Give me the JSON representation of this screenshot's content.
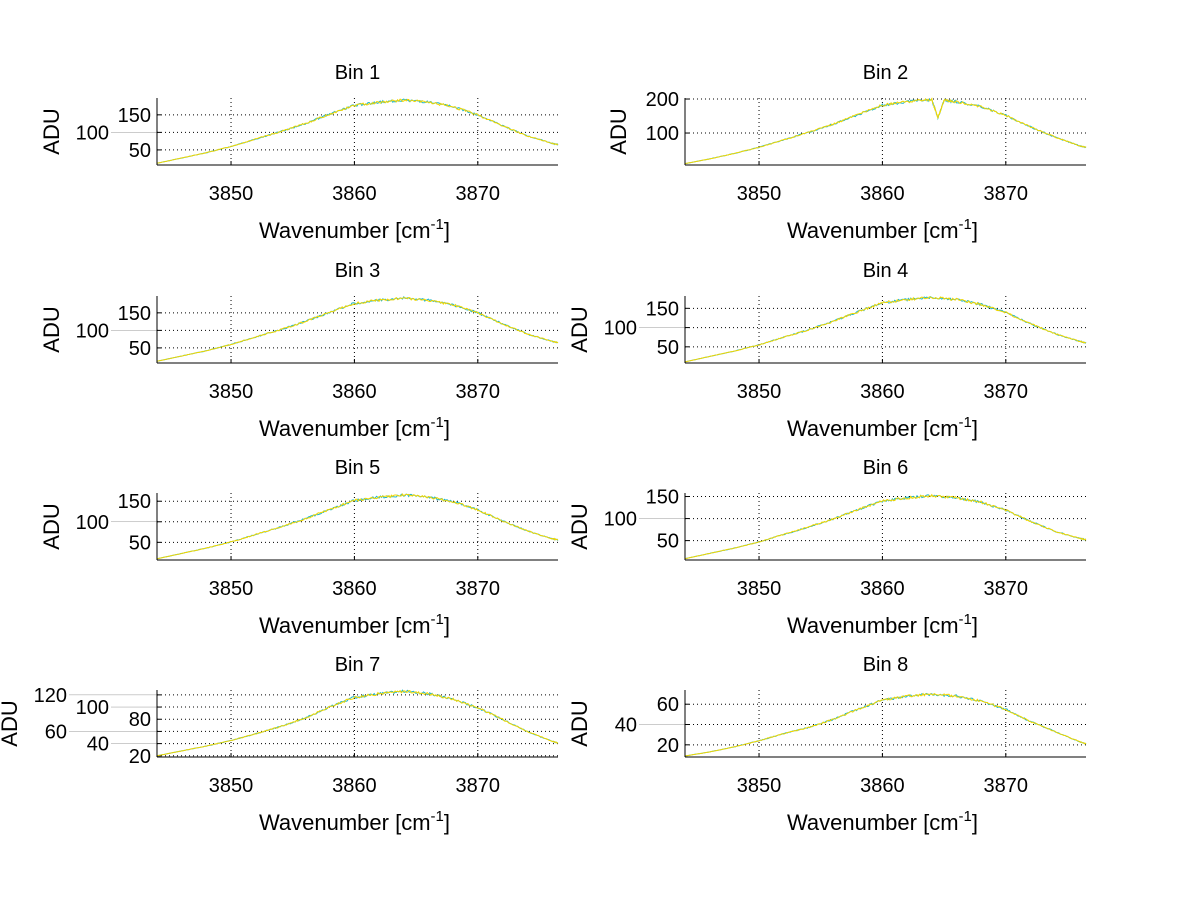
{
  "chart_data": [
    {
      "type": "line",
      "title": "Bin 1",
      "xlabel": "Wavenumber [cm",
      "xlabel_sup": "-1",
      "xlabel_end": "]",
      "ylabel": "ADU",
      "xlim": [
        3844,
        3876.5
      ],
      "ylim": [
        7,
        198
      ],
      "xticks": [
        3850,
        3860,
        3870
      ],
      "yticks": [
        50,
        100,
        150
      ],
      "grid": true,
      "x": [
        3844,
        3846,
        3848,
        3850,
        3852,
        3854,
        3856,
        3858,
        3860,
        3862,
        3864,
        3866,
        3868,
        3870,
        3872,
        3874,
        3876,
        3876.5
      ],
      "y": [
        12,
        27,
        42,
        60,
        81,
        102,
        125,
        152,
        177,
        186,
        192,
        186,
        173,
        150,
        119,
        90,
        69,
        65
      ]
    },
    {
      "type": "line",
      "title": "Bin 2",
      "xlabel": "Wavenumber [cm",
      "xlabel_sup": "-1",
      "xlabel_end": "]",
      "ylabel": "ADU",
      "xlim": [
        3844,
        3876.5
      ],
      "ylim": [
        6,
        203
      ],
      "xticks": [
        3850,
        3860,
        3870
      ],
      "yticks": [
        100,
        200
      ],
      "grid": true,
      "x": [
        3844,
        3846,
        3848,
        3850,
        3852,
        3854,
        3856,
        3858,
        3860,
        3862,
        3864,
        3864.5,
        3865,
        3866,
        3868,
        3870,
        3872,
        3874,
        3876,
        3876.5
      ],
      "y": [
        10,
        24,
        40,
        58,
        80,
        102,
        126,
        154,
        182,
        192,
        198,
        145,
        196,
        192,
        178,
        152,
        118,
        88,
        62,
        58
      ]
    },
    {
      "type": "line",
      "title": "Bin 3",
      "xlabel": "Wavenumber [cm",
      "xlabel_sup": "-1",
      "xlabel_end": "]",
      "ylabel": "ADU",
      "xlim": [
        3844,
        3876.5
      ],
      "ylim": [
        7,
        198
      ],
      "xticks": [
        3850,
        3860,
        3870
      ],
      "yticks": [
        50,
        100,
        150
      ],
      "grid": true,
      "x": [
        3844,
        3846,
        3848,
        3850,
        3852,
        3854,
        3856,
        3858,
        3860,
        3862,
        3864,
        3866,
        3868,
        3870,
        3872,
        3874,
        3876,
        3876.5
      ],
      "y": [
        12,
        27,
        42,
        60,
        81,
        102,
        125,
        152,
        177,
        186,
        192,
        186,
        173,
        150,
        119,
        90,
        69,
        65
      ]
    },
    {
      "type": "line",
      "title": "Bin 4",
      "xlabel": "Wavenumber [cm",
      "xlabel_sup": "-1",
      "xlabel_end": "]",
      "ylabel": "ADU",
      "xlim": [
        3844,
        3876.5
      ],
      "ylim": [
        8,
        182
      ],
      "xticks": [
        3850,
        3860,
        3870
      ],
      "yticks": [
        50,
        100,
        150
      ],
      "grid": true,
      "x": [
        3844,
        3846,
        3848,
        3850,
        3852,
        3854,
        3856,
        3858,
        3860,
        3862,
        3864,
        3866,
        3868,
        3870,
        3872,
        3874,
        3876,
        3876.5
      ],
      "y": [
        11,
        25,
        39,
        55,
        75,
        94,
        116,
        141,
        164,
        173,
        178,
        173,
        160,
        139,
        110,
        84,
        64,
        60
      ]
    },
    {
      "type": "line",
      "title": "Bin 5",
      "xlabel": "Wavenumber [cm",
      "xlabel_sup": "-1",
      "xlabel_end": "]",
      "ylabel": "ADU",
      "xlim": [
        3844,
        3876.5
      ],
      "ylim": [
        7,
        170
      ],
      "xticks": [
        3850,
        3860,
        3870
      ],
      "yticks": [
        50,
        100,
        150
      ],
      "grid": true,
      "x": [
        3844,
        3846,
        3848,
        3850,
        3852,
        3854,
        3856,
        3858,
        3860,
        3862,
        3864,
        3866,
        3868,
        3870,
        3872,
        3874,
        3876,
        3876.5
      ],
      "y": [
        10,
        23,
        36,
        51,
        69,
        87,
        107,
        130,
        152,
        160,
        165,
        160,
        149,
        129,
        102,
        78,
        59,
        56
      ]
    },
    {
      "type": "line",
      "title": "Bin 6",
      "xlabel": "Wavenumber [cm",
      "xlabel_sup": "-1",
      "xlabel_end": "]",
      "ylabel": "ADU",
      "xlim": [
        3844,
        3876.5
      ],
      "ylim": [
        6,
        158
      ],
      "xticks": [
        3850,
        3860,
        3870
      ],
      "yticks": [
        50,
        100,
        150
      ],
      "grid": true,
      "x": [
        3844,
        3846,
        3848,
        3850,
        3852,
        3854,
        3856,
        3858,
        3860,
        3862,
        3864,
        3866,
        3868,
        3870,
        3872,
        3874,
        3876,
        3876.5
      ],
      "y": [
        9,
        21,
        33,
        47,
        64,
        81,
        99,
        120,
        140,
        147,
        152,
        147,
        137,
        119,
        94,
        71,
        55,
        52
      ]
    },
    {
      "type": "line",
      "title": "Bin 7",
      "xlabel": "Wavenumber [cm",
      "xlabel_sup": "-1",
      "xlabel_end": "]",
      "ylabel": "ADU",
      "xlim": [
        3844,
        3876.5
      ],
      "ylim": [
        18,
        128
      ],
      "xticks": [
        3850,
        3860,
        3870
      ],
      "yticks": [
        20,
        40,
        60,
        80,
        100,
        120
      ],
      "grid": true,
      "x": [
        3844,
        3846,
        3848,
        3850,
        3852,
        3854,
        3856,
        3858,
        3860,
        3862,
        3864,
        3866,
        3868,
        3870,
        3872,
        3874,
        3876,
        3876.5
      ],
      "y": [
        20,
        28,
        36,
        45,
        56,
        68,
        82,
        100,
        116,
        122,
        126,
        122,
        113,
        99,
        80,
        60,
        44,
        41
      ]
    },
    {
      "type": "line",
      "title": "Bin 8",
      "xlabel": "Wavenumber [cm",
      "xlabel_sup": "-1",
      "xlabel_end": "]",
      "ylabel": "ADU",
      "xlim": [
        3844,
        3876.5
      ],
      "ylim": [
        8,
        74
      ],
      "xticks": [
        3850,
        3860,
        3870
      ],
      "yticks": [
        20,
        40,
        60
      ],
      "grid": true,
      "x": [
        3844,
        3846,
        3848,
        3850,
        3852,
        3854,
        3856,
        3858,
        3860,
        3862,
        3864,
        3866,
        3868,
        3870,
        3872,
        3874,
        3876,
        3876.5
      ],
      "y": [
        9,
        13,
        18,
        24,
        31,
        37,
        45,
        55,
        64,
        68,
        70,
        68,
        63,
        55,
        43,
        33,
        23,
        21
      ]
    }
  ],
  "colors": {
    "line": "#f2d600",
    "line_under": "#1fb5c8",
    "axis": "#000000",
    "grid": "#000000"
  }
}
